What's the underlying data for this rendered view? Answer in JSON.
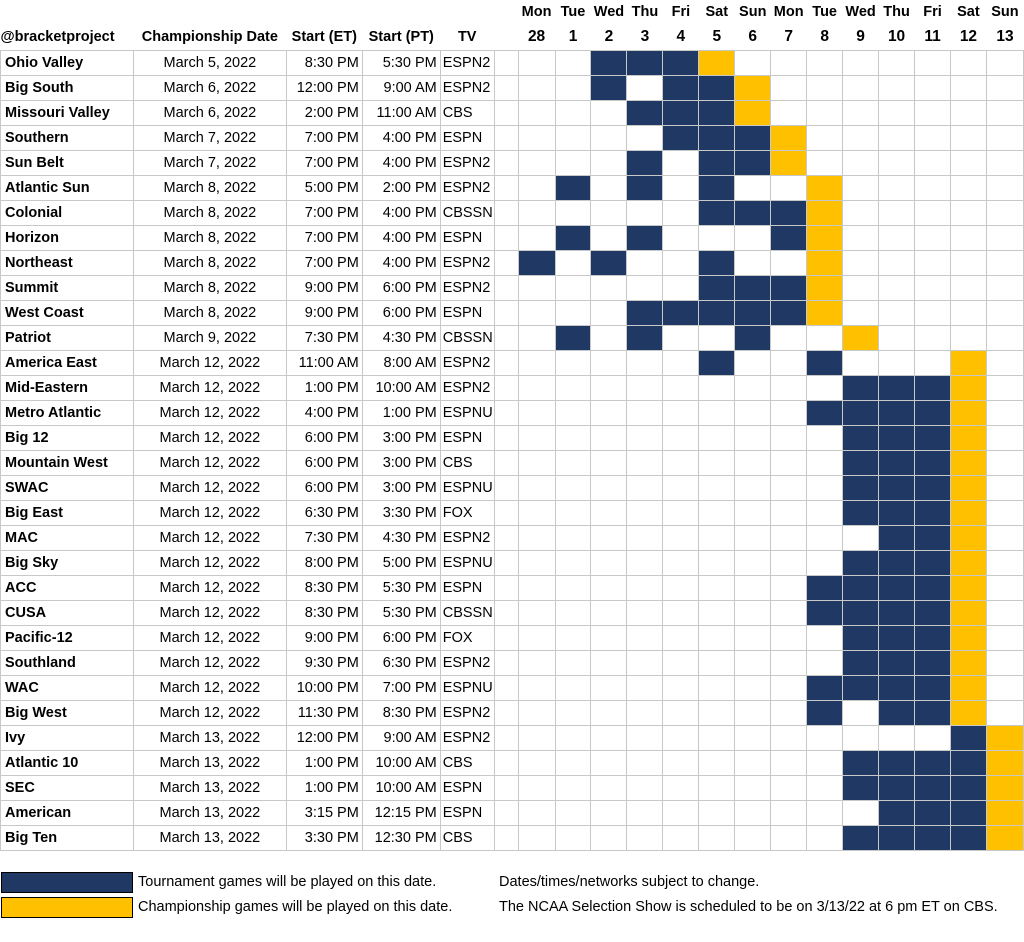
{
  "header": {
    "handle": "@bracketproject",
    "columns": {
      "date": "Championship Date",
      "start_et": "Start (ET)",
      "start_pt": "Start (PT)",
      "tv": "TV"
    },
    "days": [
      {
        "dow": "Mon",
        "num": "28"
      },
      {
        "dow": "Tue",
        "num": "1"
      },
      {
        "dow": "Wed",
        "num": "2"
      },
      {
        "dow": "Thu",
        "num": "3"
      },
      {
        "dow": "Fri",
        "num": "4"
      },
      {
        "dow": "Sat",
        "num": "5"
      },
      {
        "dow": "Sun",
        "num": "6"
      },
      {
        "dow": "Mon",
        "num": "7"
      },
      {
        "dow": "Tue",
        "num": "8"
      },
      {
        "dow": "Wed",
        "num": "9"
      },
      {
        "dow": "Thu",
        "num": "10"
      },
      {
        "dow": "Fri",
        "num": "11"
      },
      {
        "dow": "Sat",
        "num": "12"
      },
      {
        "dow": "Sun",
        "num": "13"
      }
    ]
  },
  "colors": {
    "tournament": "#1f3864",
    "championship": "#ffc000",
    "empty": "#ffffff"
  },
  "rows": [
    {
      "conf": "Ohio Valley",
      "date": "March 5, 2022",
      "et": "8:30 PM",
      "pt": "5:30 PM",
      "tv": "ESPN2",
      "cells": "..GGGC........"
    },
    {
      "conf": "Big South",
      "date": "March 6, 2022",
      "et": "12:00 PM",
      "pt": "9:00 AM",
      "tv": "ESPN2",
      "cells": "..G.GGC......."
    },
    {
      "conf": "Missouri Valley",
      "date": "March 6, 2022",
      "et": "2:00 PM",
      "pt": "11:00 AM",
      "tv": "CBS",
      "cells": "...GGGC......."
    },
    {
      "conf": "Southern",
      "date": "March 7, 2022",
      "et": "7:00 PM",
      "pt": "4:00 PM",
      "tv": "ESPN",
      "cells": "....GGGC......"
    },
    {
      "conf": "Sun Belt",
      "date": "March 7, 2022",
      "et": "7:00 PM",
      "pt": "4:00 PM",
      "tv": "ESPN2",
      "cells": "...G.GGC......"
    },
    {
      "conf": "Atlantic Sun",
      "date": "March 8, 2022",
      "et": "5:00 PM",
      "pt": "2:00 PM",
      "tv": "ESPN2",
      "cells": ".G.G.G..C....."
    },
    {
      "conf": "Colonial",
      "date": "March 8, 2022",
      "et": "7:00 PM",
      "pt": "4:00 PM",
      "tv": "CBSSN",
      "cells": ".....GGGC....."
    },
    {
      "conf": "Horizon",
      "date": "March 8, 2022",
      "et": "7:00 PM",
      "pt": "4:00 PM",
      "tv": "ESPN",
      "cells": ".G.G...GC....."
    },
    {
      "conf": "Northeast",
      "date": "March 8, 2022",
      "et": "7:00 PM",
      "pt": "4:00 PM",
      "tv": "ESPN2",
      "cells": "G.G..G..C....."
    },
    {
      "conf": "Summit",
      "date": "March 8, 2022",
      "et": "9:00 PM",
      "pt": "6:00 PM",
      "tv": "ESPN2",
      "cells": ".....GGGC....."
    },
    {
      "conf": "West Coast",
      "date": "March 8, 2022",
      "et": "9:00 PM",
      "pt": "6:00 PM",
      "tv": "ESPN",
      "cells": "...GGGGGC....."
    },
    {
      "conf": "Patriot",
      "date": "March 9, 2022",
      "et": "7:30 PM",
      "pt": "4:30 PM",
      "tv": "CBSSN",
      "cells": ".G.G..G..C...."
    },
    {
      "conf": "America East",
      "date": "March 12, 2022",
      "et": "11:00 AM",
      "pt": "8:00 AM",
      "tv": "ESPN2",
      "cells": ".....G..G...C."
    },
    {
      "conf": "Mid-Eastern",
      "date": "March 12, 2022",
      "et": "1:00 PM",
      "pt": "10:00 AM",
      "tv": "ESPN2",
      "cells": ".........GGGC."
    },
    {
      "conf": "Metro Atlantic",
      "date": "March 12, 2022",
      "et": "4:00 PM",
      "pt": "1:00 PM",
      "tv": "ESPNU",
      "cells": "........GGGGC."
    },
    {
      "conf": "Big 12",
      "date": "March 12, 2022",
      "et": "6:00 PM",
      "pt": "3:00 PM",
      "tv": "ESPN",
      "cells": ".........GGGC."
    },
    {
      "conf": "Mountain West",
      "date": "March 12, 2022",
      "et": "6:00 PM",
      "pt": "3:00 PM",
      "tv": "CBS",
      "cells": ".........GGGC."
    },
    {
      "conf": "SWAC",
      "date": "March 12, 2022",
      "et": "6:00 PM",
      "pt": "3:00 PM",
      "tv": "ESPNU",
      "cells": ".........GGGC."
    },
    {
      "conf": "Big East",
      "date": "March 12, 2022",
      "et": "6:30 PM",
      "pt": "3:30 PM",
      "tv": "FOX",
      "cells": ".........GGGC."
    },
    {
      "conf": "MAC",
      "date": "March 12, 2022",
      "et": "7:30 PM",
      "pt": "4:30 PM",
      "tv": "ESPN2",
      "cells": "..........GGC."
    },
    {
      "conf": "Big Sky",
      "date": "March 12, 2022",
      "et": "8:00 PM",
      "pt": "5:00 PM",
      "tv": "ESPNU",
      "cells": ".........GGGC."
    },
    {
      "conf": "ACC",
      "date": "March 12, 2022",
      "et": "8:30 PM",
      "pt": "5:30 PM",
      "tv": "ESPN",
      "cells": "........GGGGC."
    },
    {
      "conf": "CUSA",
      "date": "March 12, 2022",
      "et": "8:30 PM",
      "pt": "5:30 PM",
      "tv": "CBSSN",
      "cells": "........GGGGC."
    },
    {
      "conf": "Pacific-12",
      "date": "March 12, 2022",
      "et": "9:00 PM",
      "pt": "6:00 PM",
      "tv": "FOX",
      "cells": ".........GGGC."
    },
    {
      "conf": "Southland",
      "date": "March 12, 2022",
      "et": "9:30 PM",
      "pt": "6:30 PM",
      "tv": "ESPN2",
      "cells": ".........GGGC."
    },
    {
      "conf": "WAC",
      "date": "March 12, 2022",
      "et": "10:00 PM",
      "pt": "7:00 PM",
      "tv": "ESPNU",
      "cells": "........GGGGC."
    },
    {
      "conf": "Big West",
      "date": "March 12, 2022",
      "et": "11:30 PM",
      "pt": "8:30 PM",
      "tv": "ESPN2",
      "cells": "........G.GGC."
    },
    {
      "conf": "Ivy",
      "date": "March 13, 2022",
      "et": "12:00 PM",
      "pt": "9:00 AM",
      "tv": "ESPN2",
      "cells": "............GC"
    },
    {
      "conf": "Atlantic 10",
      "date": "March 13, 2022",
      "et": "1:00 PM",
      "pt": "10:00 AM",
      "tv": "CBS",
      "cells": ".........GGGGC"
    },
    {
      "conf": "SEC",
      "date": "March 13, 2022",
      "et": "1:00 PM",
      "pt": "10:00 AM",
      "tv": "ESPN",
      "cells": ".........GGGGC"
    },
    {
      "conf": "American",
      "date": "March 13, 2022",
      "et": "3:15 PM",
      "pt": "12:15 PM",
      "tv": "ESPN",
      "cells": "..........GGGC"
    },
    {
      "conf": "Big Ten",
      "date": "March 13, 2022",
      "et": "3:30 PM",
      "pt": "12:30 PM",
      "tv": "CBS",
      "cells": ".........GGGGC"
    }
  ],
  "legend": {
    "tournament_label": "Tournament games will be played on this date.",
    "championship_label": "Championship games will be played on this date."
  },
  "notes": {
    "line1": "Dates/times/networks subject to change.",
    "line2": "The NCAA Selection Show is scheduled to be on 3/13/22 at 6 pm ET on CBS."
  }
}
